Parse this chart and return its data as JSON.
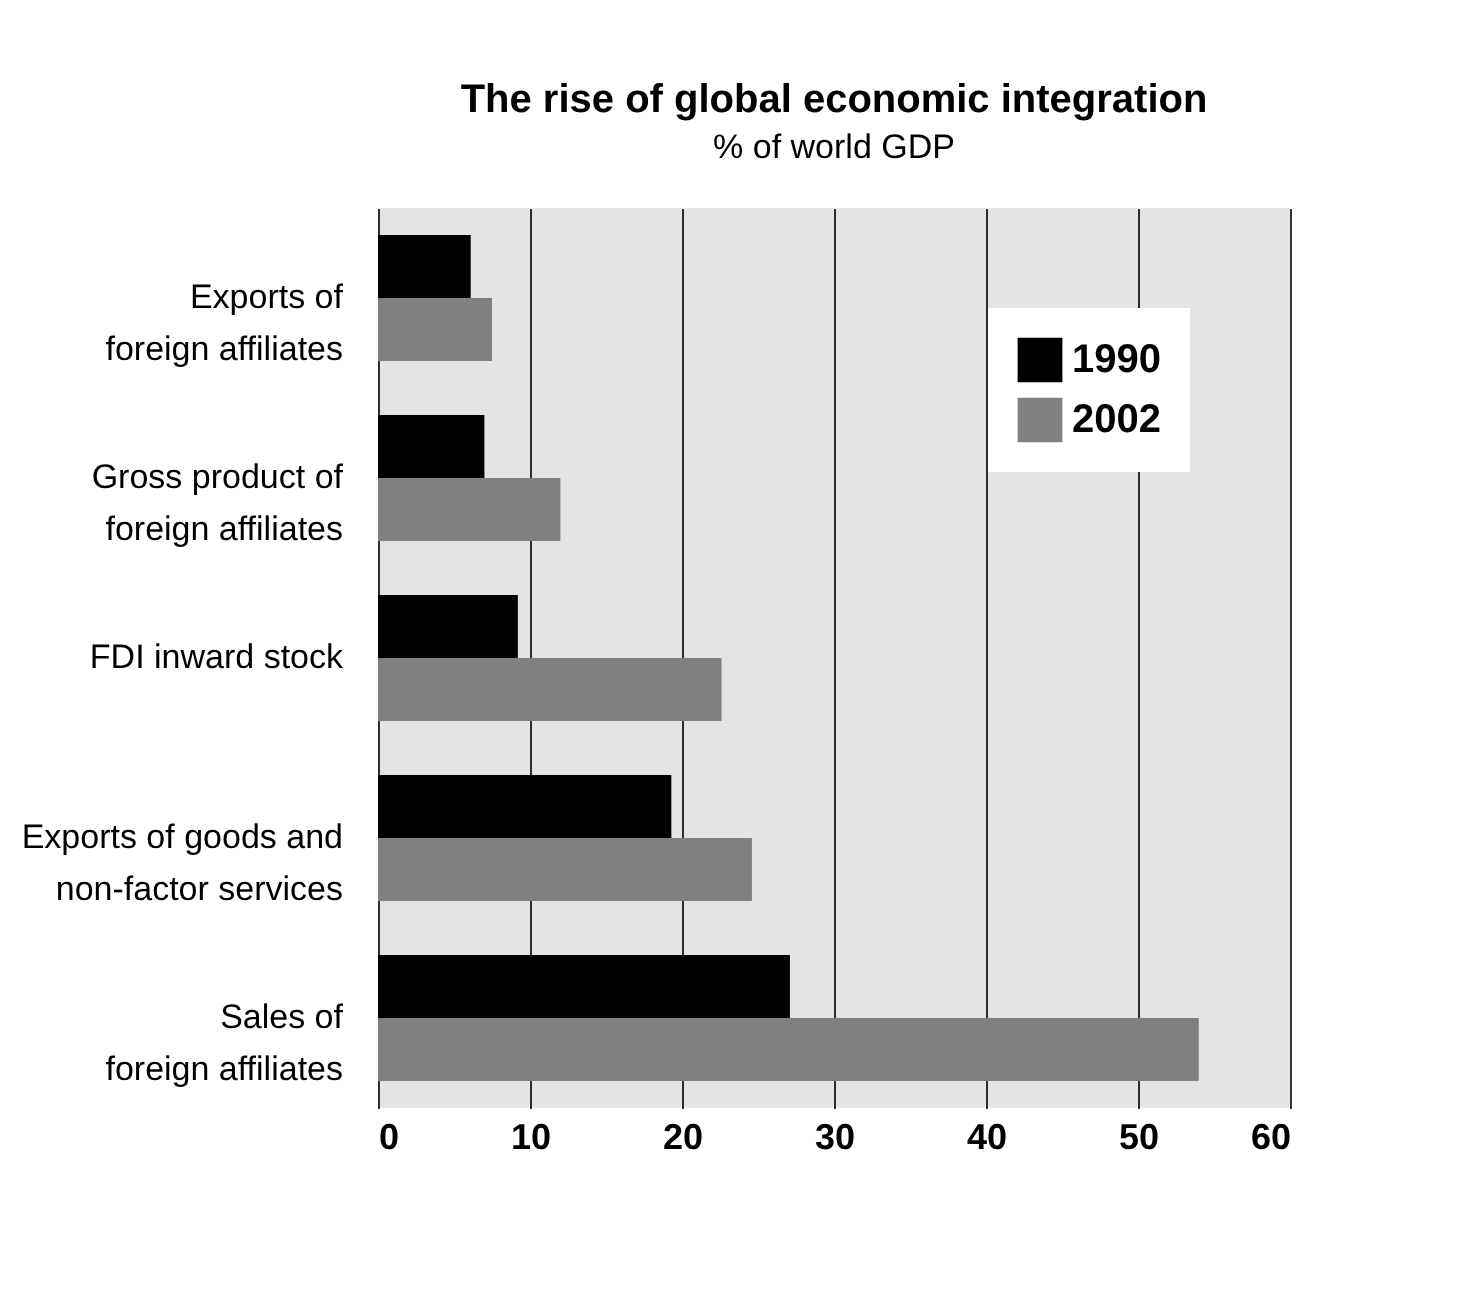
{
  "chart_data": {
    "type": "bar",
    "orientation": "horizontal",
    "title": "The rise of global economic integration",
    "subtitle": "% of world GDP",
    "categories": [
      "Exports of\nforeign affiliates",
      "Gross product of\nforeign affiliates",
      "FDI inward stock",
      "Exports of goods and\nnon-factor services",
      "Sales of\nforeign affiliates"
    ],
    "series": [
      {
        "name": "1990",
        "color": "#000000",
        "values": [
          6.1,
          7.0,
          9.2,
          19.3,
          27.1
        ]
      },
      {
        "name": "2002",
        "color": "#808080",
        "values": [
          7.5,
          12.0,
          22.6,
          24.6,
          54.0
        ]
      }
    ],
    "xlim": [
      0,
      60
    ],
    "xticks": [
      0,
      10,
      20,
      30,
      40,
      50,
      60
    ],
    "grid": "x",
    "legend": "top right"
  }
}
